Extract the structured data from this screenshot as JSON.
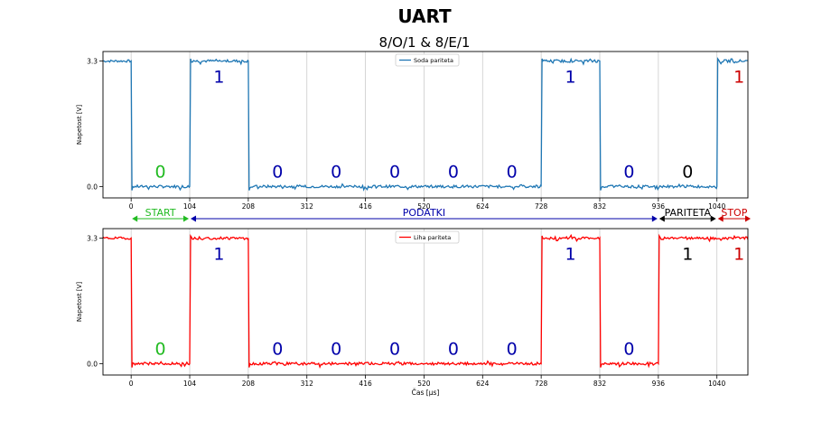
{
  "figure": {
    "title": "UART",
    "subtitle": "8/O/1 & 8/E/1"
  },
  "colors": {
    "odd_line": "#1f77b4",
    "even_line": "#ff0000",
    "start": "#22bb22",
    "data": "#0000aa",
    "parity": "#000000",
    "stop": "#cc0000",
    "grid": "#cccccc"
  },
  "frame_labels": [
    {
      "label": "START",
      "x_from": 0,
      "x_to": 104,
      "color": "start"
    },
    {
      "label": "PODATKI",
      "x_from": 104,
      "x_to": 936,
      "color": "data"
    },
    {
      "label": "PARITETA",
      "x_from": 936,
      "x_to": 1040,
      "color": "parity"
    },
    {
      "label": "STOP",
      "x_from": 1040,
      "x_to": 1144,
      "color": "stop"
    }
  ],
  "chart_data": [
    {
      "type": "line",
      "series": [
        {
          "name": "Soda pariteta",
          "bits": [
            0,
            1,
            0,
            0,
            0,
            0,
            0,
            1,
            0,
            0,
            1
          ]
        }
      ],
      "bit_labels": [
        "0",
        "1",
        "0",
        "0",
        "0",
        "0",
        "0",
        "1",
        "0",
        "0",
        "1"
      ],
      "bit_label_colors": [
        "start",
        "data",
        "data",
        "data",
        "data",
        "data",
        "data",
        "data",
        "data",
        "parity",
        "stop"
      ],
      "x_range": [
        -50,
        1095
      ],
      "y_range": [
        -0.3,
        3.55
      ],
      "x_ticks": [
        0,
        104,
        208,
        312,
        416,
        520,
        624,
        728,
        832,
        936,
        1040
      ],
      "x_tick_labels": [
        "0",
        "104",
        "208",
        "312",
        "416",
        "520",
        "624",
        "728",
        "832",
        "936",
        "1040"
      ],
      "y_ticks": [
        0.0,
        3.3
      ],
      "y_tick_labels": [
        "0.0",
        "3.3"
      ],
      "ylabel": "Napetost [V]",
      "xlabel": "",
      "grid": "vertical",
      "legend": "top-center"
    },
    {
      "type": "line",
      "series": [
        {
          "name": "Liha pariteta",
          "bits": [
            0,
            1,
            0,
            0,
            0,
            0,
            0,
            1,
            0,
            1,
            1
          ]
        }
      ],
      "bit_labels": [
        "0",
        "1",
        "0",
        "0",
        "0",
        "0",
        "0",
        "1",
        "0",
        "1",
        "1"
      ],
      "bit_label_colors": [
        "start",
        "data",
        "data",
        "data",
        "data",
        "data",
        "data",
        "data",
        "data",
        "parity",
        "stop"
      ],
      "x_range": [
        -50,
        1095
      ],
      "y_range": [
        -0.3,
        3.55
      ],
      "x_ticks": [
        0,
        104,
        208,
        312,
        416,
        520,
        624,
        728,
        832,
        936,
        1040
      ],
      "x_tick_labels": [
        "0",
        "104",
        "208",
        "312",
        "416",
        "520",
        "624",
        "728",
        "832",
        "936",
        "1040"
      ],
      "y_ticks": [
        0.0,
        3.3
      ],
      "y_tick_labels": [
        "0.0",
        "3.3"
      ],
      "ylabel": "Napetost [V]",
      "xlabel": "Čas [μs]",
      "grid": "vertical",
      "legend": "top-center"
    }
  ]
}
